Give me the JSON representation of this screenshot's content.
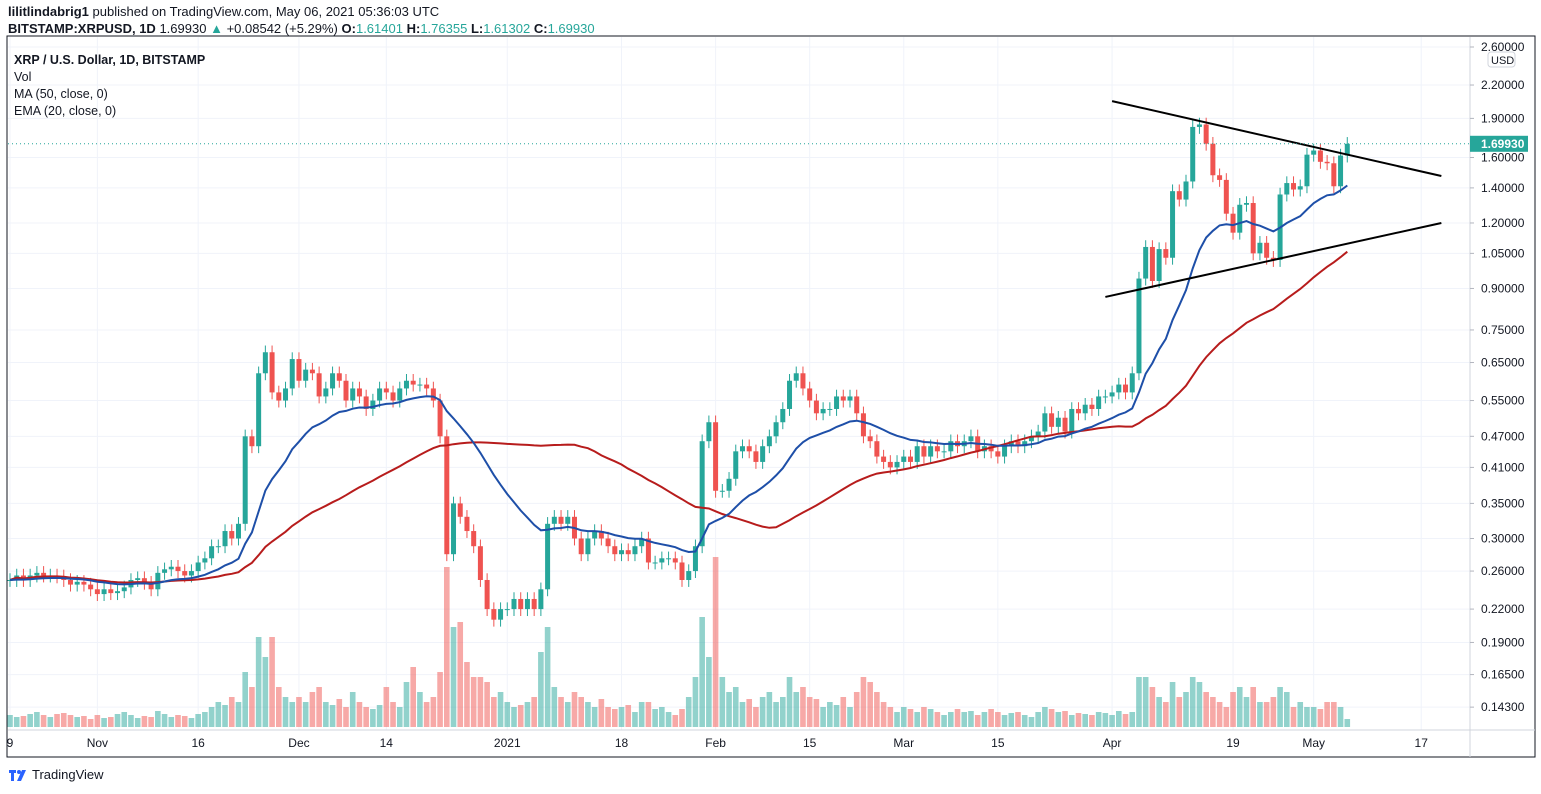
{
  "header": {
    "author": "lilitlindabrig1",
    "published": "published on TradingView.com, May 06, 2021 05:36:03 UTC",
    "symbol": "BITSTAMP:XRPUSD, 1D",
    "last": "1.69930",
    "change": "+0.08542 (+5.29%)",
    "o_label": "O:",
    "o": "1.61401",
    "h_label": "H:",
    "h": "1.76355",
    "l_label": "L:",
    "l": "1.61302",
    "c_label": "C:",
    "c": "1.69930"
  },
  "legend": {
    "title": "XRP / U.S. Dollar, 1D, BITSTAMP",
    "vol": "Vol",
    "ma": "MA (50, close, 0)",
    "ema": "EMA (20, close, 0)"
  },
  "footer": {
    "brand": "TradingView"
  },
  "colors": {
    "up": "#26a69a",
    "down": "#ef5350",
    "ema": "#1e4fa8",
    "ma": "#b71c1c",
    "trendline": "#000000",
    "grid": "#f0f3fa"
  },
  "chart_data": {
    "type": "candlestick",
    "scale": "log",
    "currency": "USD",
    "grid": true,
    "last_price_label": "1.69930",
    "ylim": [
      0.13,
      2.7
    ],
    "y_ticks": [
      "2.60000",
      "2.20000",
      "1.90000",
      "1.60000",
      "1.40000",
      "1.20000",
      "1.05000",
      "0.90000",
      "0.75000",
      "0.65000",
      "0.55000",
      "0.47000",
      "0.41000",
      "0.35000",
      "0.30000",
      "0.26000",
      "0.22000",
      "0.19000",
      "0.16500",
      "0.14300"
    ],
    "x_ticks": [
      {
        "label": "9",
        "date": "2020-10-19"
      },
      {
        "label": "Nov",
        "date": "2020-11-01"
      },
      {
        "label": "16",
        "date": "2020-11-16"
      },
      {
        "label": "Dec",
        "date": "2020-12-01"
      },
      {
        "label": "14",
        "date": "2020-12-14"
      },
      {
        "label": "2021",
        "date": "2021-01-01"
      },
      {
        "label": "18",
        "date": "2021-01-18"
      },
      {
        "label": "Feb",
        "date": "2021-02-01"
      },
      {
        "label": "15",
        "date": "2021-02-15"
      },
      {
        "label": "Mar",
        "date": "2021-03-01"
      },
      {
        "label": "15",
        "date": "2021-03-15"
      },
      {
        "label": "Apr",
        "date": "2021-04-01"
      },
      {
        "label": "19",
        "date": "2021-04-19"
      },
      {
        "label": "May",
        "date": "2021-05-01"
      },
      {
        "label": "17",
        "date": "2021-05-17"
      }
    ],
    "indicators": [
      {
        "name": "MA (50, close, 0)",
        "kind": "sma",
        "period": 50
      },
      {
        "name": "EMA (20, close, 0)",
        "kind": "ema",
        "period": 20
      }
    ],
    "trendlines": [
      {
        "from": {
          "date": "2021-04-01",
          "price": 2.05
        },
        "to": {
          "date": "2021-05-20",
          "price": 1.475
        }
      },
      {
        "from": {
          "date": "2021-03-31",
          "price": 0.867
        },
        "to": {
          "date": "2021-05-20",
          "price": 1.2
        }
      }
    ],
    "months": [
      {
        "month": "2020-10",
        "first_day": 19,
        "close": [
          0.25,
          0.255,
          0.25,
          0.255,
          0.258,
          0.255,
          0.255,
          0.254,
          0.25,
          0.245,
          0.248,
          0.245,
          0.24
        ],
        "volume": [
          1.2,
          1.0,
          1.1,
          1.3,
          1.5,
          1.2,
          1.0,
          1.3,
          1.4,
          1.2,
          1.0,
          1.1,
          0.8
        ]
      },
      {
        "month": "2020-11",
        "first_day": 1,
        "close": [
          0.235,
          0.24,
          0.236,
          0.238,
          0.242,
          0.25,
          0.252,
          0.247,
          0.24,
          0.258,
          0.262,
          0.265,
          0.26,
          0.255,
          0.26,
          0.27,
          0.275,
          0.29,
          0.29,
          0.31,
          0.3,
          0.32,
          0.47,
          0.45,
          0.62,
          0.68,
          0.57,
          0.55,
          0.58,
          0.66
        ],
        "volume": [
          1.2,
          0.9,
          1.0,
          1.3,
          1.5,
          1.2,
          0.9,
          1.1,
          1.0,
          1.6,
          1.3,
          1.0,
          1.2,
          1.1,
          0.9,
          1.3,
          1.5,
          2.0,
          2.5,
          2.2,
          3.0,
          2.5,
          5.5,
          4.0,
          9.0,
          7.0,
          9.0,
          4.0,
          3.0,
          2.5
        ]
      },
      {
        "month": "2020-12",
        "first_day": 1,
        "close": [
          0.6,
          0.63,
          0.62,
          0.56,
          0.58,
          0.62,
          0.6,
          0.55,
          0.58,
          0.56,
          0.53,
          0.55,
          0.58,
          0.57,
          0.55,
          0.58,
          0.6,
          0.59,
          0.59,
          0.58,
          0.55,
          0.47,
          0.28,
          0.35,
          0.33,
          0.31,
          0.29,
          0.25,
          0.22,
          0.21,
          0.22
        ],
        "volume": [
          3.0,
          2.5,
          3.5,
          4.0,
          2.5,
          2.2,
          2.8,
          2.0,
          3.5,
          2.5,
          2.0,
          1.8,
          2.2,
          4.0,
          2.5,
          2.0,
          4.5,
          6.0,
          3.5,
          2.5,
          3.0,
          5.5,
          16.0,
          10.0,
          10.5,
          6.5,
          5.0,
          5.0,
          4.5,
          3.0,
          3.5
        ]
      },
      {
        "month": "2021-01",
        "first_day": 1,
        "close": [
          0.22,
          0.23,
          0.22,
          0.23,
          0.22,
          0.24,
          0.32,
          0.33,
          0.32,
          0.33,
          0.3,
          0.28,
          0.3,
          0.31,
          0.3,
          0.29,
          0.28,
          0.285,
          0.28,
          0.29,
          0.3,
          0.27,
          0.27,
          0.275,
          0.275,
          0.27,
          0.25,
          0.26,
          0.29,
          0.46,
          0.5
        ],
        "volume": [
          2.5,
          2.0,
          2.2,
          2.5,
          3.0,
          7.5,
          10.0,
          4.0,
          3.0,
          2.5,
          3.5,
          3.0,
          2.5,
          2.0,
          2.8,
          2.0,
          1.8,
          2.0,
          2.2,
          1.5,
          2.5,
          2.5,
          1.8,
          2.0,
          1.5,
          1.2,
          1.8,
          3.0,
          5.0,
          11.0,
          7.0
        ]
      },
      {
        "month": "2021-02",
        "first_day": 1,
        "close": [
          0.37,
          0.37,
          0.39,
          0.44,
          0.45,
          0.44,
          0.42,
          0.45,
          0.47,
          0.5,
          0.53,
          0.6,
          0.62,
          0.58,
          0.55,
          0.52,
          0.53,
          0.53,
          0.56,
          0.55,
          0.56,
          0.52,
          0.47,
          0.46,
          0.43,
          0.42,
          0.41,
          0.42
        ],
        "volume": [
          17.0,
          5.0,
          3.5,
          4.0,
          2.5,
          2.8,
          2.0,
          3.0,
          3.5,
          2.5,
          3.0,
          5.0,
          3.5,
          4.0,
          3.0,
          2.8,
          2.0,
          2.5,
          2.2,
          3.0,
          2.0,
          3.5,
          5.0,
          4.5,
          3.5,
          2.5,
          2.0,
          1.5
        ]
      },
      {
        "month": "2021-03",
        "first_day": 1,
        "close": [
          0.43,
          0.42,
          0.45,
          0.43,
          0.45,
          0.44,
          0.44,
          0.46,
          0.45,
          0.46,
          0.47,
          0.44,
          0.45,
          0.44,
          0.43,
          0.45,
          0.46,
          0.45,
          0.46,
          0.47,
          0.48,
          0.52,
          0.49,
          0.51,
          0.48,
          0.53,
          0.52,
          0.54,
          0.53,
          0.56,
          0.56
        ],
        "volume": [
          2.0,
          1.8,
          1.5,
          2.0,
          1.8,
          1.5,
          1.2,
          1.5,
          1.8,
          1.5,
          1.6,
          1.2,
          1.5,
          1.8,
          1.5,
          1.2,
          1.4,
          1.5,
          1.2,
          1.0,
          1.5,
          2.0,
          1.8,
          1.5,
          1.6,
          1.2,
          1.4,
          1.3,
          1.2,
          1.5,
          1.4
        ]
      },
      {
        "month": "2021-04",
        "first_day": 1,
        "close": [
          0.57,
          0.59,
          0.57,
          0.62,
          0.94,
          1.08,
          0.93,
          1.07,
          1.03,
          1.38,
          1.33,
          1.44,
          1.83,
          1.85,
          1.7,
          1.48,
          1.45,
          1.25,
          1.15,
          1.3,
          1.31,
          1.05,
          1.1,
          1.03,
          1.02,
          1.36,
          1.43,
          1.39,
          1.41,
          1.62
        ],
        "volume": [
          1.2,
          1.6,
          1.3,
          1.5,
          5.0,
          5.0,
          4.0,
          3.0,
          2.5,
          4.5,
          3.0,
          3.5,
          5.0,
          4.5,
          3.5,
          3.0,
          2.5,
          2.0,
          3.5,
          4.0,
          3.0,
          4.0,
          2.5,
          2.5,
          3.0,
          4.0,
          3.5,
          2.0,
          2.5,
          2.0
        ]
      },
      {
        "month": "2021-05",
        "first_day": 1,
        "close": [
          1.65,
          1.57,
          1.56,
          1.41,
          1.614,
          1.6993
        ],
        "volume": [
          2.0,
          1.8,
          2.5,
          2.5,
          2.0,
          0.8
        ]
      }
    ]
  }
}
